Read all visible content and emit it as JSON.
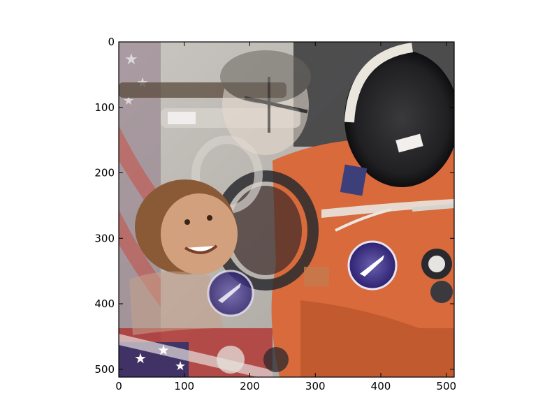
{
  "figure": {
    "title": "",
    "subtitle": "",
    "x_axis": {
      "ticks": [
        0,
        100,
        200,
        300,
        400,
        500
      ],
      "range": [
        0,
        512
      ]
    },
    "y_axis": {
      "ticks": [
        0,
        100,
        200,
        300,
        400,
        500
      ],
      "range": [
        0,
        512
      ],
      "inverted": true
    },
    "image": {
      "description": "blended image: astronaut in orange spacesuit overlaid with a rotated copy, American flag visible",
      "colors": {
        "suit_orange": "#d86a3c",
        "flag_red": "#b2312f",
        "flag_blue": "#2d2f6b",
        "background_gray": "#b8b4ae",
        "helmet_dark": "#2a2a2c",
        "skin": "#d2a07c",
        "hair": "#8a5a36"
      }
    }
  }
}
